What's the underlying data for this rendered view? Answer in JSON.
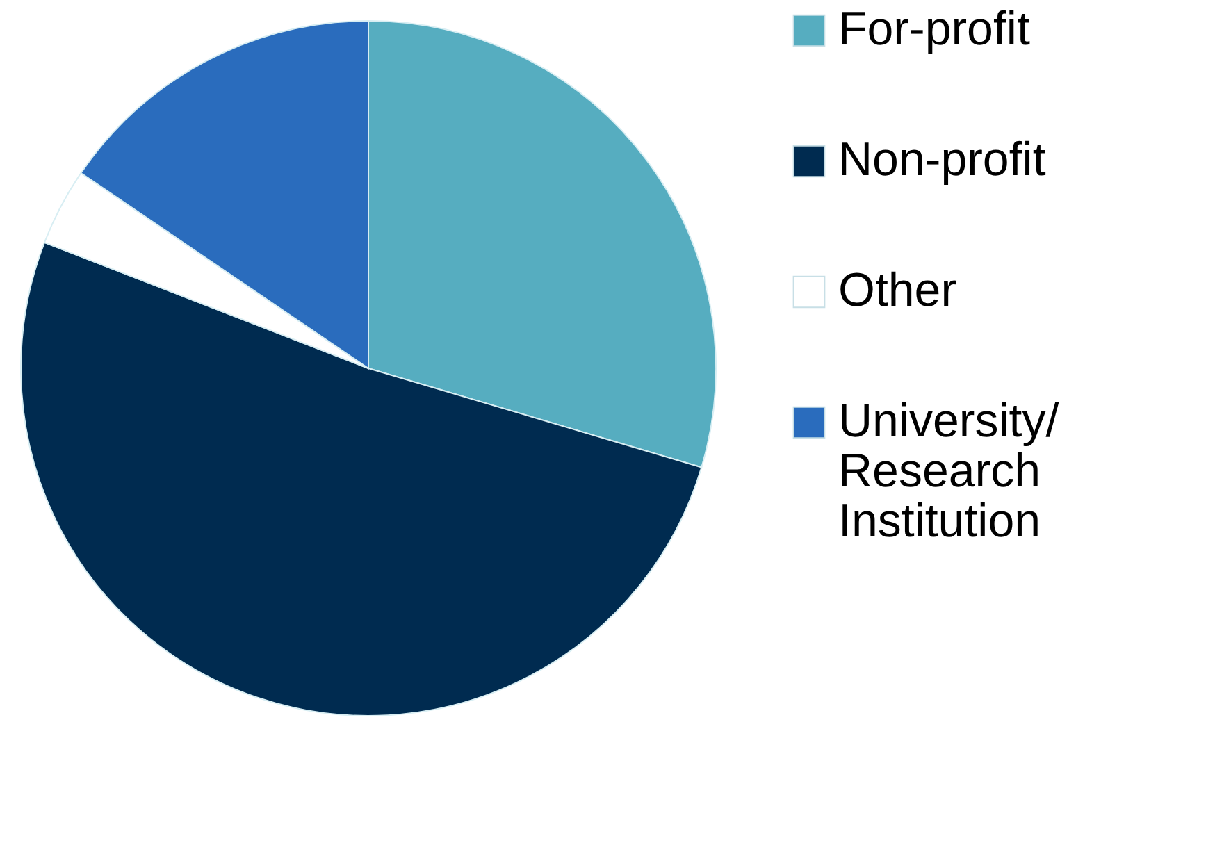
{
  "chart_data": {
    "type": "pie",
    "categories": [
      "For-profit",
      "Non-profit",
      "Other",
      "University/ Research Institution"
    ],
    "values": [
      29.6,
      51.3,
      3.6,
      15.5
    ],
    "colors": [
      "#56adc0",
      "#002b50",
      "#ffffff",
      "#2a6cbd"
    ],
    "legend": "right"
  }
}
